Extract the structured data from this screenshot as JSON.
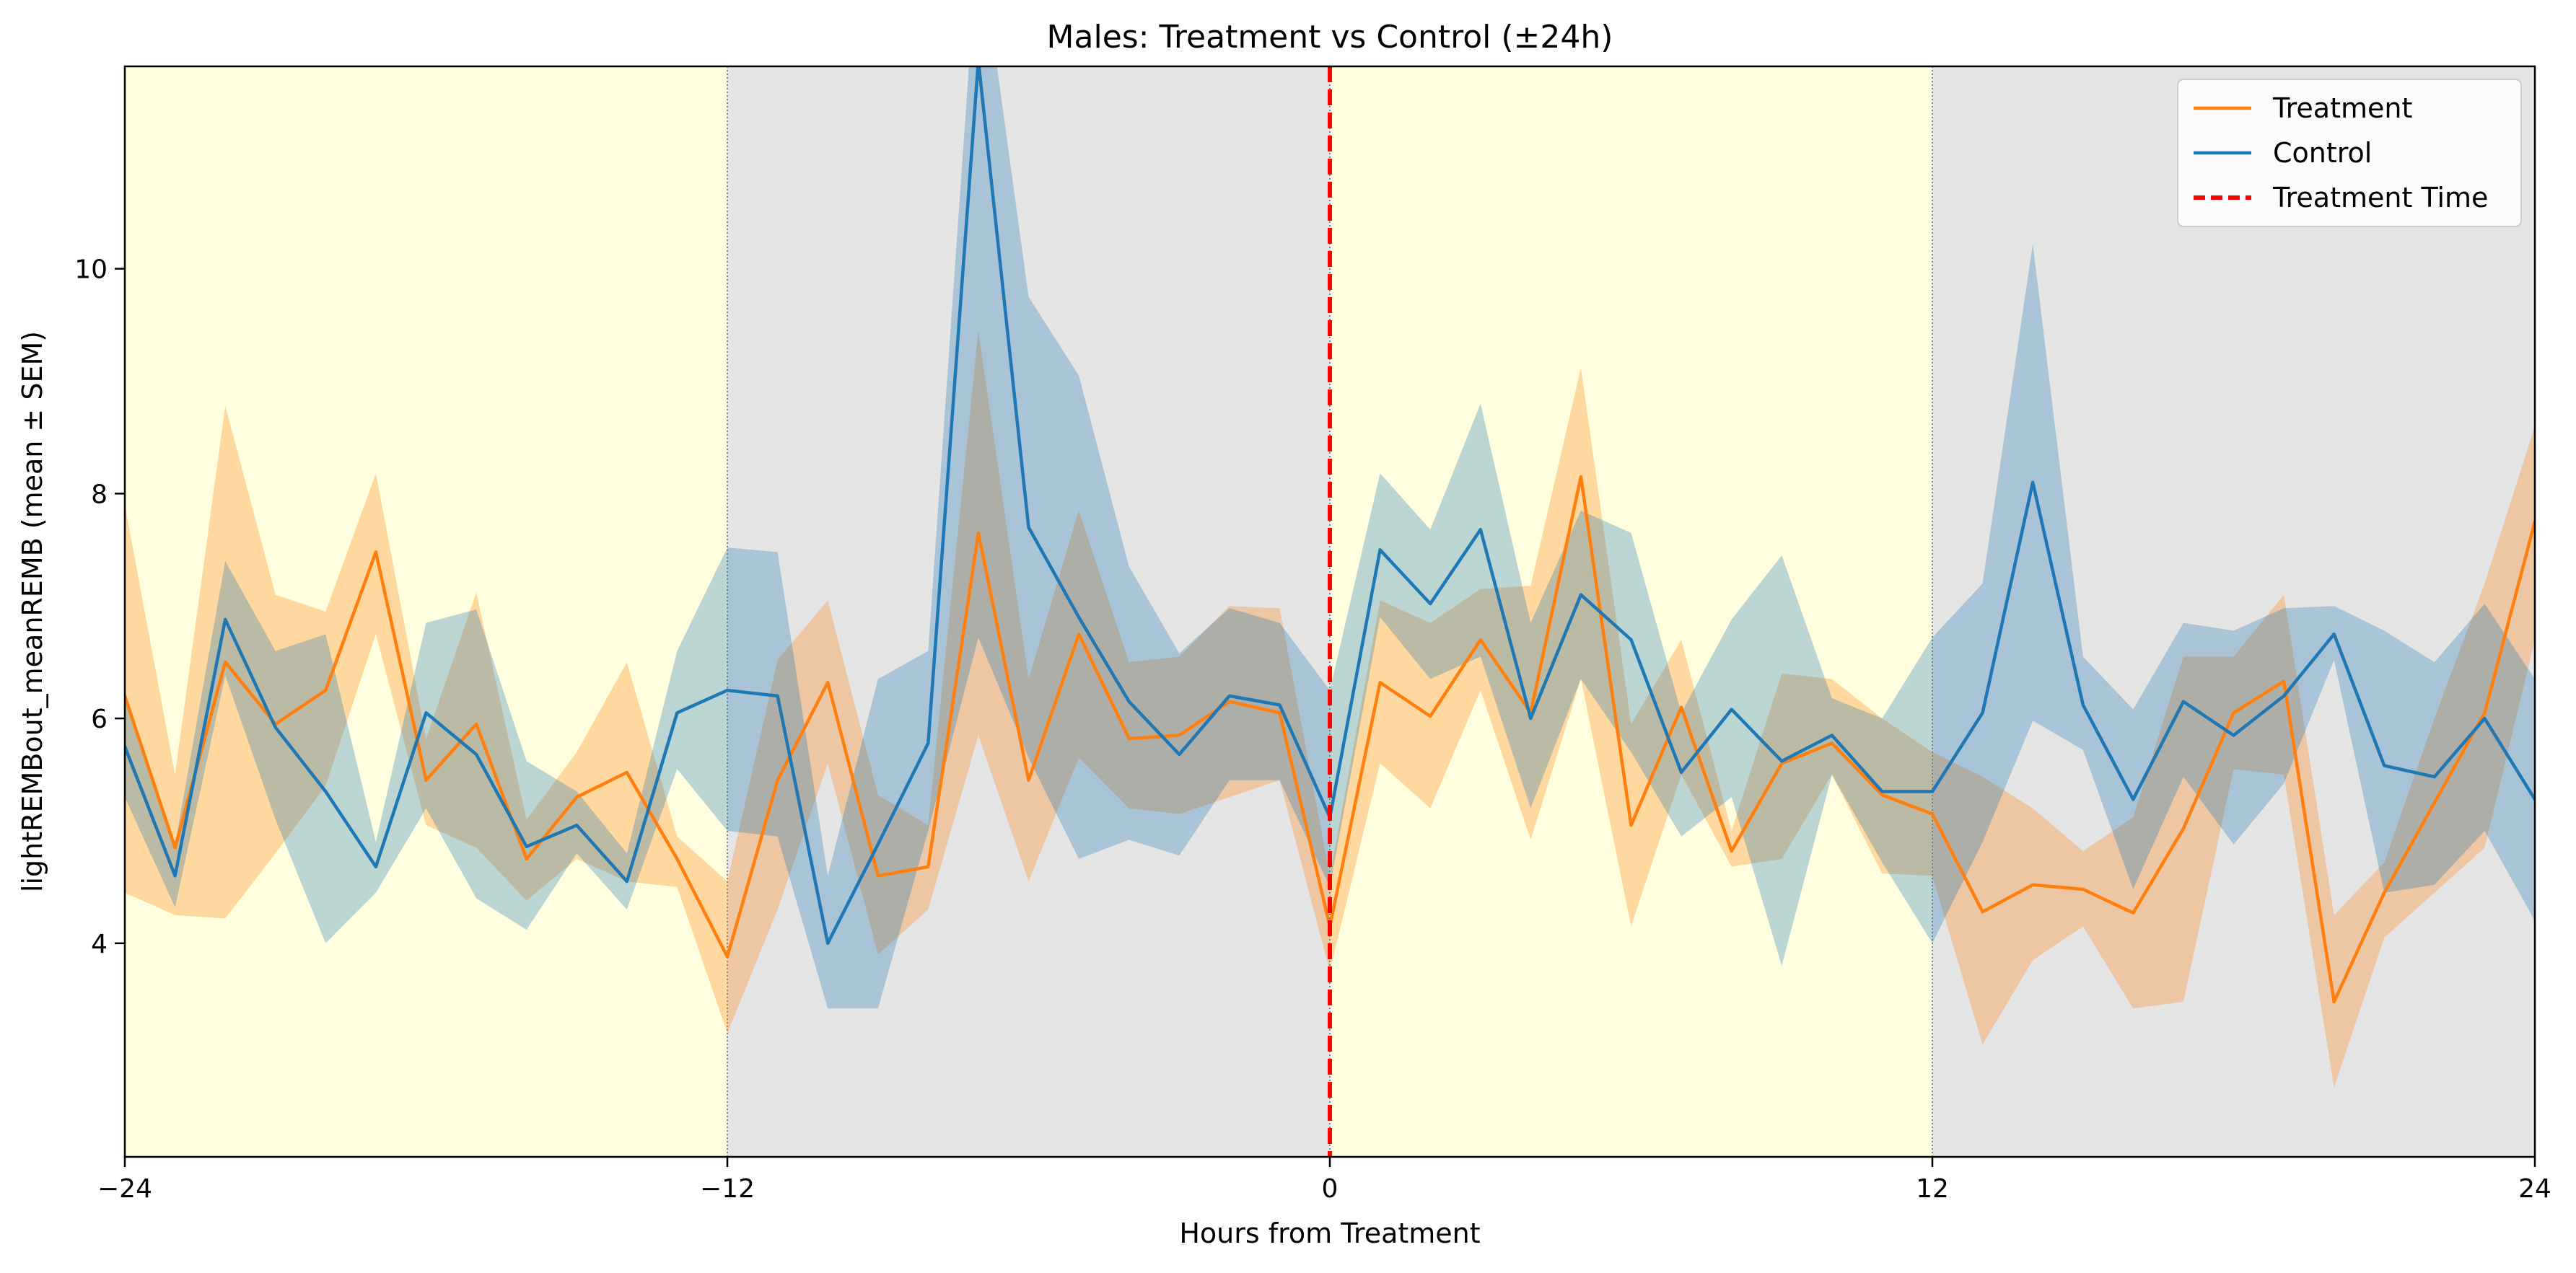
{
  "chart_data": {
    "type": "line",
    "title": "Males: Treatment vs Control (±24h)",
    "xlabel": "Hours from Treatment",
    "ylabel": "lightREMBout_meanREMB (mean ± SEM)",
    "xlim": [
      -24,
      24
    ],
    "ylim": [
      2.1,
      11.8
    ],
    "xticks": [
      -24,
      -12,
      0,
      12,
      24
    ],
    "yticks": [
      4,
      6,
      8,
      10
    ],
    "x": [
      -24,
      -23,
      -22,
      -21,
      -20,
      -19,
      -18,
      -17,
      -16,
      -15,
      -14,
      -13,
      -12,
      -11,
      -10,
      -9,
      -8,
      -7,
      -6,
      -5,
      -4,
      -3,
      -2,
      -1,
      0,
      1,
      2,
      3,
      4,
      5,
      6,
      7,
      8,
      9,
      10,
      11,
      12,
      13,
      14,
      15,
      16,
      17,
      18,
      19,
      20,
      21,
      22,
      23,
      24
    ],
    "series": [
      {
        "name": "Treatment",
        "color": "#ff7f0e",
        "values": [
          6.2,
          4.85,
          6.5,
          5.95,
          6.25,
          7.48,
          5.45,
          5.95,
          4.75,
          5.3,
          5.52,
          4.75,
          3.88,
          5.45,
          6.32,
          4.6,
          4.68,
          7.65,
          5.45,
          6.75,
          5.82,
          5.85,
          6.15,
          6.05,
          4.15,
          6.32,
          6.02,
          6.7,
          6.05,
          8.15,
          5.05,
          6.1,
          4.82,
          5.6,
          5.78,
          5.32,
          5.15,
          4.28,
          4.52,
          4.48,
          4.27,
          5.02,
          6.05,
          6.33,
          3.48,
          4.45,
          5.25,
          6.05,
          7.75
        ],
        "lower": [
          4.45,
          4.25,
          4.22,
          4.8,
          5.4,
          6.75,
          5.05,
          4.85,
          4.38,
          4.75,
          4.55,
          4.5,
          3.2,
          4.3,
          5.6,
          3.9,
          4.3,
          5.85,
          4.55,
          5.65,
          5.2,
          5.15,
          5.3,
          5.45,
          3.75,
          5.6,
          5.2,
          6.25,
          4.92,
          6.35,
          4.15,
          5.5,
          4.68,
          4.75,
          5.5,
          4.62,
          4.6,
          3.1,
          3.85,
          4.15,
          3.42,
          3.48,
          5.55,
          5.5,
          2.72,
          4.05,
          4.45,
          4.85,
          6.7
        ],
        "upper": [
          7.9,
          5.5,
          8.78,
          7.1,
          6.95,
          8.18,
          5.82,
          7.12,
          5.1,
          5.7,
          6.5,
          4.95,
          4.55,
          6.52,
          7.05,
          5.32,
          5.05,
          9.45,
          6.35,
          7.85,
          6.5,
          6.55,
          7.0,
          6.98,
          4.6,
          7.05,
          6.85,
          7.15,
          7.18,
          9.12,
          5.95,
          6.7,
          5.0,
          6.4,
          6.35,
          6.0,
          5.7,
          5.48,
          5.2,
          4.82,
          5.12,
          6.55,
          6.55,
          7.1,
          4.25,
          4.72,
          6.0,
          7.2,
          8.6
        ]
      },
      {
        "name": "Control",
        "color": "#1f77b4",
        "values": [
          5.75,
          4.6,
          6.88,
          5.92,
          5.35,
          4.68,
          6.05,
          5.68,
          4.86,
          5.05,
          4.55,
          6.05,
          6.25,
          6.2,
          4.0,
          4.88,
          5.78,
          11.85,
          7.7,
          6.9,
          6.15,
          5.68,
          6.2,
          6.12,
          5.12,
          7.5,
          7.02,
          7.68,
          6.0,
          7.1,
          6.7,
          5.52,
          6.08,
          5.62,
          5.85,
          5.35,
          5.35,
          6.05,
          8.1,
          6.12,
          5.28,
          6.15,
          5.85,
          6.2,
          6.75,
          5.58,
          5.48,
          6.0,
          5.28
        ],
        "lower": [
          5.3,
          4.32,
          6.38,
          5.1,
          4.0,
          4.45,
          5.2,
          4.4,
          4.12,
          4.8,
          4.3,
          5.55,
          5.0,
          4.95,
          3.42,
          3.42,
          5.0,
          6.72,
          5.65,
          4.75,
          4.92,
          4.78,
          5.45,
          5.45,
          4.5,
          6.9,
          6.35,
          6.55,
          5.2,
          6.35,
          5.7,
          4.95,
          5.3,
          3.8,
          5.5,
          4.72,
          4.0,
          4.9,
          5.98,
          5.72,
          4.48,
          5.48,
          4.88,
          5.42,
          6.52,
          4.45,
          4.52,
          5.0,
          4.2
        ],
        "upper": [
          6.2,
          4.88,
          7.4,
          6.6,
          6.75,
          4.9,
          6.85,
          6.97,
          5.62,
          5.35,
          4.8,
          6.6,
          7.52,
          7.48,
          4.6,
          6.35,
          6.6,
          13.0,
          9.75,
          9.05,
          7.35,
          6.58,
          6.98,
          6.85,
          6.25,
          8.18,
          7.68,
          8.8,
          6.85,
          7.85,
          7.65,
          6.05,
          6.88,
          7.45,
          6.18,
          6.0,
          6.72,
          7.2,
          10.22,
          6.55,
          6.08,
          6.85,
          6.78,
          6.98,
          7.0,
          6.78,
          6.5,
          7.02,
          6.35
        ]
      }
    ],
    "treatment_line": {
      "name": "Treatment Time",
      "x": 0,
      "color": "#ff0000"
    },
    "phase_bands": [
      {
        "from": -24,
        "to": -12,
        "phase": "light",
        "color": "#ffffe0"
      },
      {
        "from": -12,
        "to": 0,
        "phase": "dark",
        "color": "#e5e5e5"
      },
      {
        "from": 0,
        "to": 12,
        "phase": "light",
        "color": "#ffffe0"
      },
      {
        "from": 12,
        "to": 24,
        "phase": "dark",
        "color": "#e5e5e5"
      }
    ],
    "boundary_lines": [
      -12,
      12
    ],
    "legend": {
      "placement": "top-right",
      "entries": [
        "Treatment",
        "Control",
        "Treatment Time"
      ]
    },
    "grid": false
  }
}
